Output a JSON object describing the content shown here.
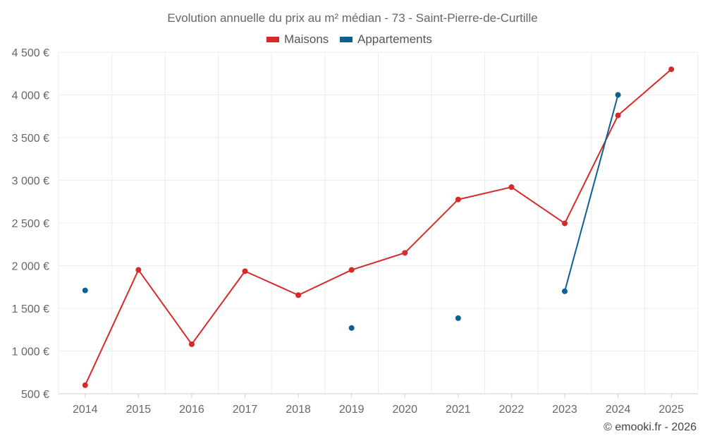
{
  "chart_data": {
    "type": "line",
    "title": "Evolution annuelle du prix au m² médian - 73 - Saint-Pierre-de-Curtille",
    "credit": "© emooki.fr - 2026",
    "categories": [
      "2014",
      "2015",
      "2016",
      "2017",
      "2018",
      "2019",
      "2020",
      "2021",
      "2022",
      "2023",
      "2024",
      "2025"
    ],
    "ylim": [
      500,
      4500
    ],
    "yticks": [
      500,
      1000,
      1500,
      2000,
      2500,
      3000,
      3500,
      4000,
      4500
    ],
    "ytick_labels": [
      "500 €",
      "1 000 €",
      "1 500 €",
      "2 000 €",
      "2 500 €",
      "3 000 €",
      "3 500 €",
      "4 000 €",
      "4 500 €"
    ],
    "legend_position": "top-center",
    "series": [
      {
        "name": "Maisons",
        "color": "#d62a2a",
        "values": [
          600,
          1950,
          1080,
          1935,
          1655,
          1950,
          2150,
          2775,
          2920,
          2495,
          3760,
          4300
        ]
      },
      {
        "name": "Appartements",
        "color": "#0e5f92",
        "values": [
          1710,
          null,
          null,
          null,
          null,
          1270,
          null,
          1385,
          null,
          1700,
          4000,
          null
        ]
      }
    ]
  }
}
